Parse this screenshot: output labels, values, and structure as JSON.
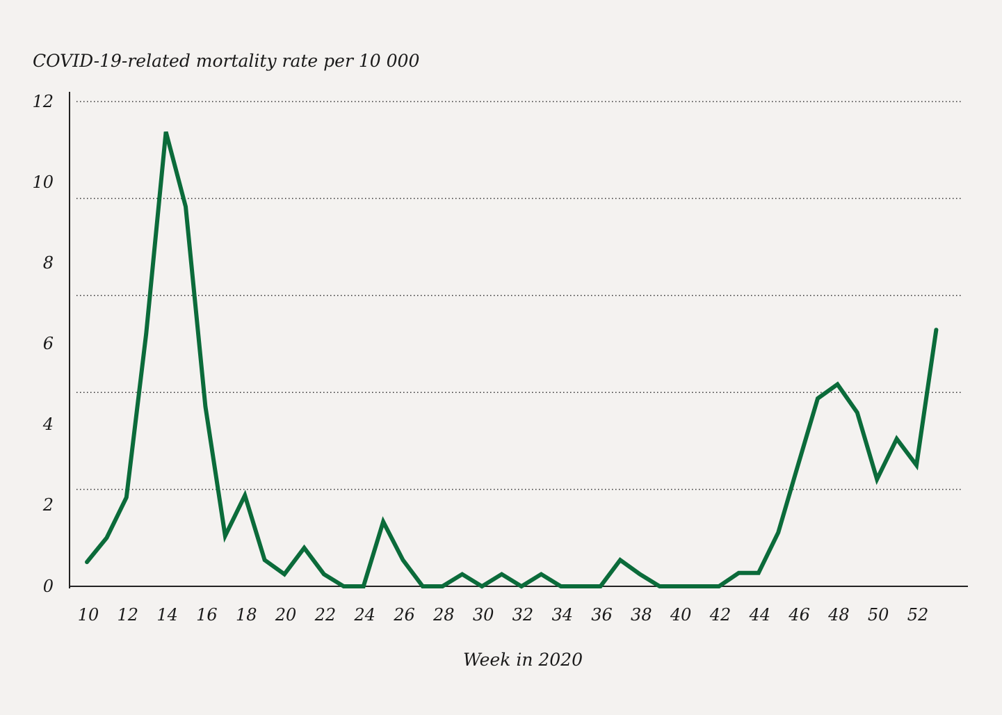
{
  "chart_data": {
    "type": "line",
    "title": "",
    "ylabel": "COVID-19-related mortality rate per 10 000",
    "xlabel": "Week in 2020",
    "ylim": [
      0,
      12
    ],
    "xlim": [
      10,
      53
    ],
    "yticks": [
      0,
      2,
      4,
      6,
      8,
      10,
      12
    ],
    "xticks": [
      10,
      12,
      14,
      16,
      18,
      20,
      22,
      24,
      26,
      28,
      30,
      32,
      34,
      36,
      38,
      40,
      42,
      44,
      46,
      48,
      50,
      52
    ],
    "gridlines": [
      2.4,
      4.8,
      7.2,
      9.6,
      12
    ],
    "grid": "horizontal dotted",
    "colors": {
      "line": "#0b6b3a",
      "background": "#f4f2f0"
    },
    "series": [
      {
        "x": [
          10,
          11,
          12,
          13,
          14,
          15,
          16,
          17,
          18,
          19,
          20,
          21,
          22,
          23,
          24,
          25,
          26,
          27,
          28,
          29,
          30,
          31,
          32,
          33,
          34,
          35,
          36,
          37,
          38,
          39,
          40,
          41,
          42,
          43,
          44,
          45,
          46,
          47,
          48,
          49,
          50,
          51,
          52,
          53
        ],
        "values": [
          0.6,
          1.2,
          2.2,
          6.25,
          11.25,
          9.4,
          4.45,
          1.25,
          2.25,
          0.65,
          0.3,
          0.95,
          0.3,
          0,
          0,
          1.6,
          0.65,
          0,
          0,
          0.3,
          0,
          0.3,
          0,
          0.3,
          0,
          0,
          0,
          0.65,
          0.3,
          0,
          0,
          0,
          0,
          0.33,
          0.33,
          1.33,
          3.0,
          4.65,
          5.0,
          4.3,
          2.65,
          3.65,
          3.0,
          6.35
        ]
      }
    ]
  }
}
